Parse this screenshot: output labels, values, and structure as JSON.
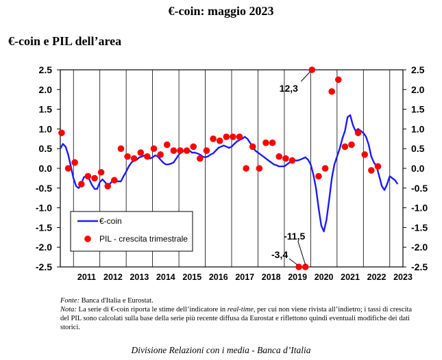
{
  "page": {
    "title": "€-coin: maggio 2023",
    "subtitle": "€-coin e PIL dell’area",
    "source_label": "Fonte:",
    "source_text": "Banca d'Italia e Eurostat.",
    "note_label": "Nota:",
    "note_text_1": "La serie di €-coin riporta le stime dell’indicatore in",
    "note_italic": "real-time",
    "note_text_2": ", per cui non viene rivista all’indietro; i tassi di crescita del PIL sono calcolati sulla base della serie più recente diffusa da Eurostat e riflettono quindi eventuali modifiche dei dati storici.",
    "footer": "Divisione Relazioni con i media - Banca d’Italia"
  },
  "colors": {
    "line": "#1a1aff",
    "dots": "#ff0000",
    "axis": "#000000"
  },
  "chart_data": {
    "type": "line",
    "title": "€-coin e PIL dell’area",
    "ylim": [
      -2.5,
      2.5
    ],
    "y_ticks": [
      -2.5,
      -2.0,
      -1.5,
      -1.0,
      -0.5,
      0.0,
      0.5,
      1.0,
      1.5,
      2.0,
      2.5
    ],
    "y_tick_labels": [
      "-2.5",
      "-2.0",
      "-1.5",
      "-1.0",
      "-0.5",
      "0.0",
      "0.5",
      "1.0",
      "1.5",
      "2.0",
      "2.5"
    ],
    "xlim": [
      2010.5,
      2023.5
    ],
    "x_tick_labels": [
      "2011",
      "2012",
      "2013",
      "2014",
      "2015",
      "2016",
      "2017",
      "2018",
      "2019",
      "2020",
      "2021",
      "2022",
      "2023"
    ],
    "grid": "vertical",
    "legend": {
      "position": "bottom-left",
      "line_label": "€-coin",
      "dot_label": "PIL - crescita trimestrale"
    },
    "series": [
      {
        "name": "€-coin",
        "kind": "line",
        "points": [
          [
            2010.5,
            0.5
          ],
          [
            2010.6,
            0.62
          ],
          [
            2010.7,
            0.55
          ],
          [
            2010.8,
            0.35
          ],
          [
            2010.9,
            0.05
          ],
          [
            2011.0,
            -0.25
          ],
          [
            2011.1,
            -0.45
          ],
          [
            2011.2,
            -0.5
          ],
          [
            2011.3,
            -0.38
          ],
          [
            2011.4,
            -0.22
          ],
          [
            2011.5,
            -0.2
          ],
          [
            2011.6,
            -0.28
          ],
          [
            2011.7,
            -0.42
          ],
          [
            2011.8,
            -0.52
          ],
          [
            2011.9,
            -0.52
          ],
          [
            2012.0,
            -0.35
          ],
          [
            2012.1,
            -0.28
          ],
          [
            2012.2,
            -0.35
          ],
          [
            2012.3,
            -0.45
          ],
          [
            2012.4,
            -0.38
          ],
          [
            2012.5,
            -0.3
          ],
          [
            2012.6,
            -0.32
          ],
          [
            2012.7,
            -0.33
          ],
          [
            2012.8,
            -0.33
          ],
          [
            2012.9,
            -0.2
          ],
          [
            2013.0,
            -0.08
          ],
          [
            2013.1,
            0.05
          ],
          [
            2013.2,
            0.15
          ],
          [
            2013.3,
            0.2
          ],
          [
            2013.4,
            0.22
          ],
          [
            2013.5,
            0.28
          ],
          [
            2013.6,
            0.3
          ],
          [
            2013.7,
            0.33
          ],
          [
            2013.8,
            0.28
          ],
          [
            2013.9,
            0.25
          ],
          [
            2014.0,
            0.28
          ],
          [
            2014.1,
            0.33
          ],
          [
            2014.2,
            0.3
          ],
          [
            2014.3,
            0.22
          ],
          [
            2014.4,
            0.15
          ],
          [
            2014.5,
            0.1
          ],
          [
            2014.6,
            0.1
          ],
          [
            2014.7,
            0.12
          ],
          [
            2014.8,
            0.15
          ],
          [
            2014.9,
            0.25
          ],
          [
            2015.0,
            0.35
          ],
          [
            2015.1,
            0.42
          ],
          [
            2015.2,
            0.45
          ],
          [
            2015.3,
            0.48
          ],
          [
            2015.4,
            0.45
          ],
          [
            2015.5,
            0.4
          ],
          [
            2015.6,
            0.4
          ],
          [
            2015.7,
            0.38
          ],
          [
            2015.8,
            0.35
          ],
          [
            2015.9,
            0.3
          ],
          [
            2016.0,
            0.28
          ],
          [
            2016.1,
            0.3
          ],
          [
            2016.2,
            0.35
          ],
          [
            2016.3,
            0.38
          ],
          [
            2016.4,
            0.45
          ],
          [
            2016.5,
            0.52
          ],
          [
            2016.6,
            0.55
          ],
          [
            2016.7,
            0.58
          ],
          [
            2016.8,
            0.55
          ],
          [
            2016.9,
            0.52
          ],
          [
            2017.0,
            0.55
          ],
          [
            2017.1,
            0.62
          ],
          [
            2017.2,
            0.68
          ],
          [
            2017.3,
            0.72
          ],
          [
            2017.4,
            0.75
          ],
          [
            2017.5,
            0.8
          ],
          [
            2017.6,
            0.75
          ],
          [
            2017.7,
            0.65
          ],
          [
            2017.8,
            0.55
          ],
          [
            2017.9,
            0.45
          ],
          [
            2018.0,
            0.4
          ],
          [
            2018.1,
            0.35
          ],
          [
            2018.2,
            0.3
          ],
          [
            2018.3,
            0.25
          ],
          [
            2018.4,
            0.2
          ],
          [
            2018.5,
            0.15
          ],
          [
            2018.6,
            0.1
          ],
          [
            2018.7,
            0.08
          ],
          [
            2018.8,
            0.05
          ],
          [
            2018.9,
            0.05
          ],
          [
            2019.0,
            0.05
          ],
          [
            2019.1,
            0.1
          ],
          [
            2019.2,
            0.15
          ],
          [
            2019.3,
            0.18
          ],
          [
            2019.4,
            0.2
          ],
          [
            2019.5,
            0.2
          ],
          [
            2019.6,
            0.22
          ],
          [
            2019.7,
            0.25
          ],
          [
            2019.8,
            0.28
          ],
          [
            2019.9,
            0.22
          ],
          [
            2020.0,
            0.1
          ],
          [
            2020.1,
            -0.15
          ],
          [
            2020.2,
            -0.5
          ],
          [
            2020.3,
            -1.0
          ],
          [
            2020.4,
            -1.45
          ],
          [
            2020.5,
            -1.6
          ],
          [
            2020.6,
            -1.3
          ],
          [
            2020.7,
            -0.8
          ],
          [
            2020.8,
            -0.25
          ],
          [
            2020.9,
            0.1
          ],
          [
            2021.0,
            0.3
          ],
          [
            2021.1,
            0.5
          ],
          [
            2021.2,
            0.75
          ],
          [
            2021.3,
            0.95
          ],
          [
            2021.4,
            1.3
          ],
          [
            2021.5,
            1.35
          ],
          [
            2021.6,
            1.1
          ],
          [
            2021.7,
            0.95
          ],
          [
            2021.8,
            1.0
          ],
          [
            2021.9,
            0.95
          ],
          [
            2022.0,
            0.9
          ],
          [
            2022.1,
            0.8
          ],
          [
            2022.2,
            0.6
          ],
          [
            2022.3,
            0.3
          ],
          [
            2022.4,
            0.15
          ],
          [
            2022.5,
            0.05
          ],
          [
            2022.6,
            -0.2
          ],
          [
            2022.7,
            -0.45
          ],
          [
            2022.8,
            -0.55
          ],
          [
            2022.9,
            -0.4
          ],
          [
            2023.0,
            -0.2
          ],
          [
            2023.1,
            -0.25
          ],
          [
            2023.2,
            -0.3
          ],
          [
            2023.3,
            -0.4
          ]
        ]
      },
      {
        "name": "PIL - crescita trimestrale",
        "kind": "scatter",
        "points": [
          [
            2010.55,
            0.9
          ],
          [
            2010.8,
            0.0
          ],
          [
            2011.05,
            0.15
          ],
          [
            2011.3,
            -0.4
          ],
          [
            2011.55,
            -0.2
          ],
          [
            2011.8,
            -0.25
          ],
          [
            2012.05,
            -0.1
          ],
          [
            2012.3,
            -0.45
          ],
          [
            2012.55,
            -0.3
          ],
          [
            2012.8,
            0.5
          ],
          [
            2013.05,
            0.3
          ],
          [
            2013.3,
            0.25
          ],
          [
            2013.55,
            0.4
          ],
          [
            2013.8,
            0.3
          ],
          [
            2014.05,
            0.5
          ],
          [
            2014.3,
            0.35
          ],
          [
            2014.55,
            0.6
          ],
          [
            2014.8,
            0.45
          ],
          [
            2015.05,
            0.45
          ],
          [
            2015.3,
            0.45
          ],
          [
            2015.55,
            0.55
          ],
          [
            2015.8,
            0.25
          ],
          [
            2016.05,
            0.45
          ],
          [
            2016.3,
            0.75
          ],
          [
            2016.55,
            0.7
          ],
          [
            2016.8,
            0.8
          ],
          [
            2017.05,
            0.8
          ],
          [
            2017.3,
            0.8
          ],
          [
            2017.55,
            0.0
          ],
          [
            2017.8,
            0.55
          ],
          [
            2018.05,
            0.0
          ],
          [
            2018.3,
            0.65
          ],
          [
            2018.55,
            0.65
          ],
          [
            2018.8,
            0.3
          ],
          [
            2019.05,
            0.25
          ],
          [
            2019.3,
            0.2
          ],
          [
            2019.55,
            -2.5
          ],
          [
            2019.8,
            -2.5
          ],
          [
            2020.05,
            2.5
          ],
          [
            2020.3,
            -0.2
          ],
          [
            2020.55,
            0.0
          ],
          [
            2020.8,
            1.95
          ],
          [
            2021.05,
            2.25
          ],
          [
            2021.3,
            0.55
          ],
          [
            2021.55,
            0.6
          ],
          [
            2021.8,
            0.9
          ],
          [
            2022.05,
            0.35
          ],
          [
            2022.3,
            -0.05
          ],
          [
            2022.55,
            0.05
          ]
        ]
      }
    ],
    "annotations": [
      {
        "text": "12,3",
        "x": 2020.05,
        "y": 2.5
      },
      {
        "text": "-11,5",
        "x": 2019.8,
        "y": -2.5
      },
      {
        "text": "-3,4",
        "x": 2019.55,
        "y": -2.5
      }
    ]
  }
}
